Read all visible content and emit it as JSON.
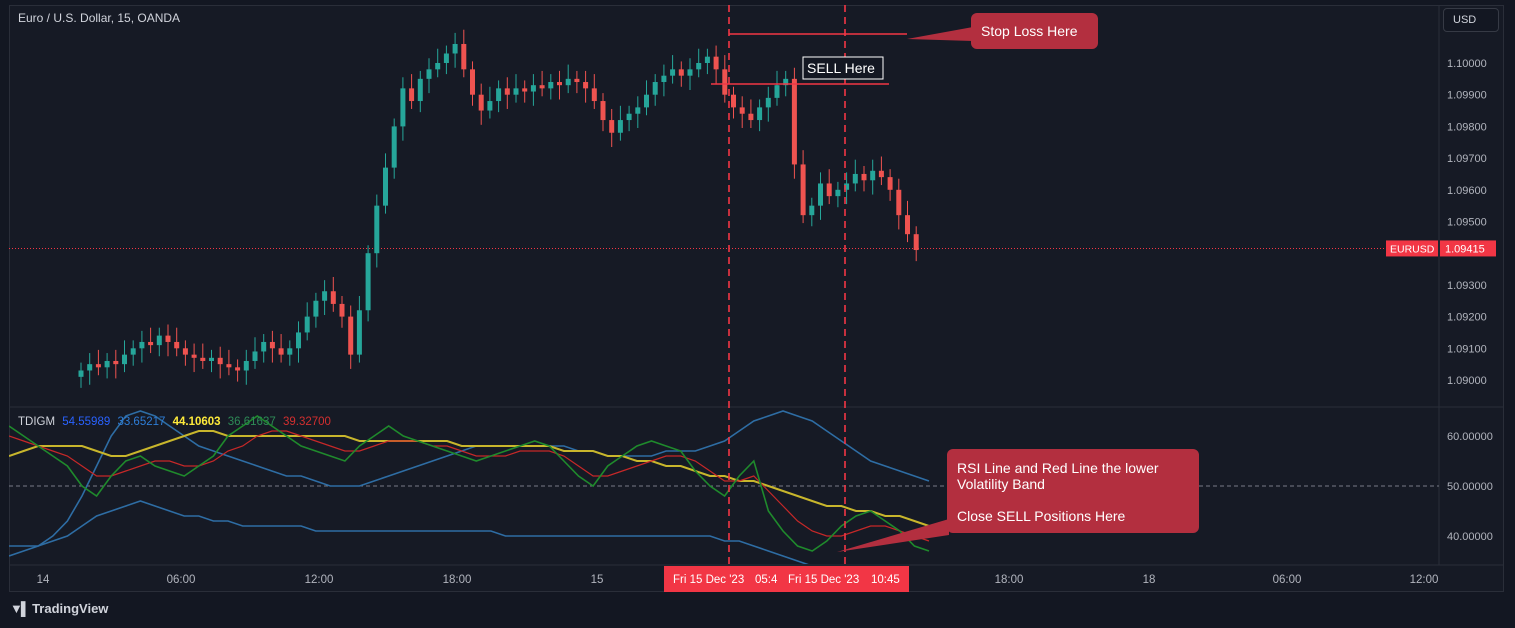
{
  "symbol": {
    "title": "Euro / U.S. Dollar, 15, OANDA",
    "currency": "USD"
  },
  "price_scale": {
    "ticks": [
      "1.10000",
      "1.09900",
      "1.09800",
      "1.09700",
      "1.09600",
      "1.09500",
      "1.09300",
      "1.09200",
      "1.09100",
      "1.09000"
    ],
    "tick_values": [
      1.1,
      1.099,
      1.098,
      1.097,
      1.096,
      1.095,
      1.093,
      1.092,
      1.091,
      1.09
    ],
    "current_symbol": "EURUSD",
    "current_price": "1.09415",
    "current_value": 1.09415
  },
  "indicator": {
    "name": "TDIGM",
    "values": [
      "54.55989",
      "33.65217",
      "44.10603",
      "36.61637",
      "39.32700"
    ],
    "scale_ticks": [
      "60.00000",
      "50.00000",
      "40.00000"
    ],
    "scale_values": [
      60,
      50,
      40
    ]
  },
  "time_axis": {
    "labels": [
      "14",
      "06:00",
      "12:00",
      "18:00",
      "15",
      "18:00",
      "18",
      "06:00",
      "12:00"
    ],
    "highlight_labels": [
      "Fri 15 Dec '23",
      "05:4",
      "Fri 15 Dec '23",
      "10:45"
    ]
  },
  "annotations": {
    "stop_loss": "Stop Loss Here",
    "sell": "SELL Here",
    "rsi_note_line1": "RSI Line and Red Line the lower",
    "rsi_note_line2": "Volatility Band",
    "rsi_note_line3": "Close SELL Positions Here"
  },
  "colors": {
    "background": "#161a25",
    "up_candle": "#26a69a",
    "down_candle": "#ef5350",
    "annotation_red": "#b32f3f",
    "vertical_dashes": "#f23645",
    "upper_band": "#2e6da4",
    "mid_band": "#c8b62c",
    "rsi_line": "#1f8a2c",
    "signal_line": "#c62828"
  },
  "brand": "TradingView",
  "chart_data": {
    "type": "candlestick",
    "x_timeframe": "15",
    "ylim": [
      1.089,
      1.101
    ],
    "candle_closes": [
      1.0903,
      1.0905,
      1.0904,
      1.0906,
      1.0905,
      1.0908,
      1.091,
      1.0912,
      1.0911,
      1.0914,
      1.0912,
      1.091,
      1.0908,
      1.0907,
      1.0906,
      1.0907,
      1.0905,
      1.0904,
      1.0903,
      1.0906,
      1.0909,
      1.0912,
      1.091,
      1.0908,
      1.091,
      1.0915,
      1.092,
      1.0925,
      1.0928,
      1.0924,
      1.092,
      1.0908,
      1.0922,
      1.094,
      1.0955,
      1.0967,
      1.098,
      1.0992,
      1.0988,
      1.0995,
      1.0998,
      1.1,
      1.1003,
      1.1006,
      1.0998,
      1.099,
      1.0985,
      1.0988,
      1.0992,
      1.099,
      1.0992,
      1.0991,
      1.0993,
      1.0992,
      1.0994,
      1.0993,
      1.0995,
      1.0994,
      1.0992,
      1.0988,
      1.0982,
      1.0978,
      1.0982,
      1.0984,
      1.0986,
      1.099,
      1.0994,
      1.0996,
      1.0998,
      1.0996,
      1.0998,
      1.1,
      1.1002,
      1.0998,
      1.099,
      1.0986,
      1.0984,
      1.0982,
      1.0986,
      1.0989,
      1.0993,
      1.0995,
      1.0968,
      1.0952,
      1.0955,
      1.0962,
      1.0958,
      1.096,
      1.0962,
      1.0965,
      1.0963,
      1.0966,
      1.0964,
      1.096,
      1.0952,
      1.0946,
      1.0941
    ],
    "tdi_scale": [
      30,
      65
    ],
    "rsi_line": [
      62,
      60,
      58,
      56,
      54,
      50,
      48,
      52,
      55,
      56,
      54,
      53,
      52,
      54,
      56,
      60,
      62,
      64,
      62,
      60,
      58,
      57,
      56,
      55,
      58,
      60,
      62,
      60,
      59,
      58,
      57,
      56,
      55,
      56,
      57,
      58,
      59,
      58,
      55,
      52,
      50,
      54,
      56,
      58,
      59,
      58,
      57,
      53,
      50,
      48,
      52,
      55,
      45,
      41,
      38,
      37,
      39,
      42,
      44,
      45,
      43,
      41,
      38,
      37
    ],
    "signal_line": [
      60,
      59,
      58,
      57,
      56,
      54,
      52,
      52,
      53,
      54,
      55,
      55,
      54,
      54,
      55,
      57,
      58,
      60,
      61,
      61,
      60,
      59,
      58,
      57,
      57,
      58,
      59,
      59,
      59,
      58,
      58,
      57,
      56,
      56,
      56,
      57,
      57,
      57,
      56,
      54,
      52,
      52,
      53,
      54,
      55,
      56,
      56,
      55,
      53,
      51,
      51,
      52,
      49,
      46,
      43,
      41,
      40,
      40,
      41,
      42,
      42,
      41,
      40,
      39
    ],
    "mid_band": [
      56,
      57,
      58,
      58,
      58,
      58,
      57,
      56,
      56,
      57,
      58,
      59,
      60,
      61,
      61,
      60,
      60,
      60,
      60,
      60,
      60,
      60,
      60,
      60,
      59,
      59,
      59,
      59,
      59,
      59,
      59,
      58,
      58,
      58,
      58,
      58,
      58,
      58,
      57,
      57,
      57,
      56,
      56,
      55,
      55,
      54,
      54,
      53,
      52,
      52,
      51,
      51,
      50,
      49,
      48,
      47,
      46,
      46,
      45,
      45,
      44,
      44,
      43,
      42
    ],
    "upper_band": [
      36,
      37,
      38,
      40,
      43,
      48,
      54,
      60,
      64,
      65,
      64,
      62,
      60,
      58,
      57,
      56,
      55,
      54,
      53,
      52,
      52,
      51,
      50,
      50,
      50,
      51,
      52,
      53,
      54,
      55,
      56,
      57,
      58,
      58,
      58,
      58,
      58,
      58,
      58,
      57,
      57,
      56,
      56,
      56,
      56,
      57,
      57,
      57,
      58,
      59,
      61,
      63,
      64,
      65,
      64,
      63,
      61,
      59,
      57,
      55,
      54,
      53,
      52,
      51
    ],
    "lower_band": [
      38,
      38,
      38,
      39,
      40,
      42,
      44,
      45,
      46,
      47,
      46,
      45,
      44,
      44,
      43,
      43,
      42,
      42,
      42,
      42,
      42,
      41,
      41,
      41,
      41,
      41,
      41,
      41,
      41,
      41,
      41,
      41,
      41,
      41,
      40,
      40,
      40,
      40,
      40,
      40,
      40,
      40,
      40,
      40,
      40,
      40,
      40,
      40,
      40,
      39,
      39,
      38,
      37,
      36,
      35,
      34,
      33,
      33,
      32,
      32,
      31,
      31,
      31,
      31
    ]
  }
}
